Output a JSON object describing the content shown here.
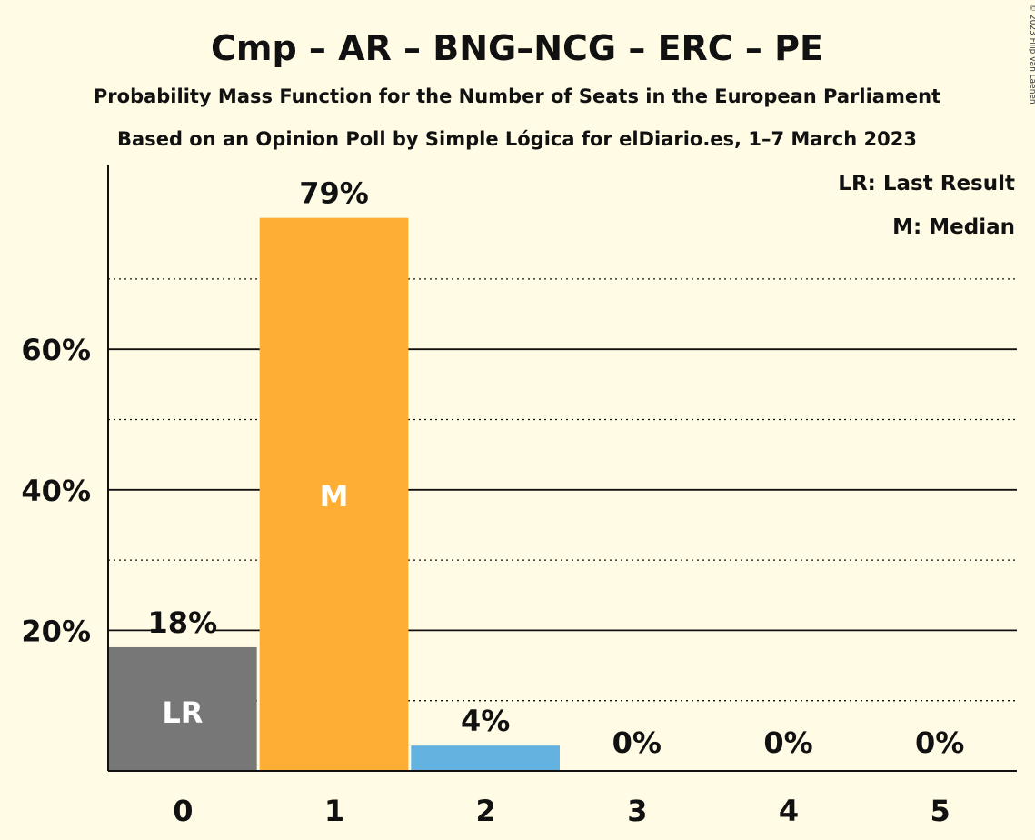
{
  "chart_data": {
    "type": "bar",
    "title": "Cmp – AR – BNG–NCG – ERC – PE",
    "subtitle": "Probability Mass Function for the Number of Seats in the European Parliament",
    "subtitle2": "Based on an Opinion Poll by Simple Lógica for elDiario.es, 1–7 March 2023",
    "copyright": "© 2023 Filip van Laenen",
    "xlabel": "",
    "ylabel": "",
    "categories": [
      "0",
      "1",
      "2",
      "3",
      "4",
      "5"
    ],
    "values": [
      17.6,
      78.7,
      3.6,
      0,
      0,
      0
    ],
    "value_labels": [
      "18%",
      "79%",
      "4%",
      "0%",
      "0%",
      "0%"
    ],
    "bar_colors": [
      "#777777",
      "#ffae35",
      "#63b2e0",
      "#63b2e0",
      "#63b2e0",
      "#63b2e0"
    ],
    "inner_labels": [
      "LR",
      "M",
      "",
      "",
      "",
      ""
    ],
    "ylim": [
      0,
      86
    ],
    "y_major_ticks": [
      20,
      40,
      60
    ],
    "y_major_tick_labels": [
      "20%",
      "40%",
      "60%"
    ],
    "y_minor_gridlines": [
      10,
      30,
      50,
      70
    ],
    "legend": [
      "LR: Last Result",
      "M: Median"
    ],
    "legend_position": "top-right"
  }
}
